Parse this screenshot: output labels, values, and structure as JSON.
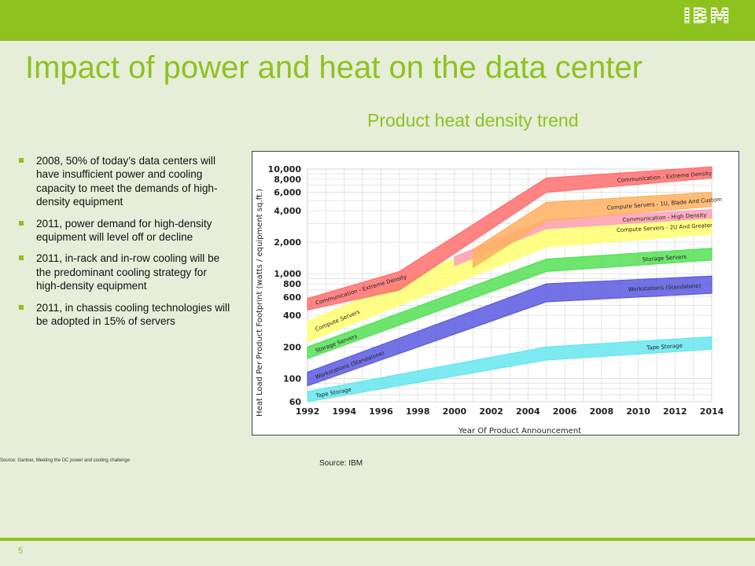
{
  "header": {
    "logo_text": "IBM"
  },
  "slide": {
    "title": "Impact of power and heat on the data center",
    "page_number": "5",
    "bullets": [
      "2008, 50% of today’s data centers will have insufficient power and cooling capacity to meet the demands of high-density equipment",
      "2011, power demand for high-density equipment will level off or decline",
      "2011, in-rack and in-row cooling will be the predominant cooling strategy for high-density equipment",
      "2011, in chassis cooling technologies will be adopted in 15% of servers"
    ],
    "source_left": "Source:  Gartner, Meeting the DC power and cooling challenge",
    "source_right": "Source: IBM"
  },
  "chart_data": {
    "type": "area",
    "title": "Product heat density trend",
    "xlabel": "Year Of Product Announcement",
    "ylabel": "Heat Load Per Product Footprint (watts / equipment sq.ft.)",
    "y_scale": "log",
    "xlim": [
      1992,
      2014
    ],
    "ylim": [
      60,
      10000
    ],
    "x_ticks": [
      1992,
      1994,
      1996,
      1998,
      2000,
      2002,
      2004,
      2006,
      2008,
      2010,
      2012,
      2014
    ],
    "y_ticks": [
      {
        "value": 10000,
        "label": "10,000"
      },
      {
        "value": 8000,
        "label": "8,000"
      },
      {
        "value": 6000,
        "label": "6,000"
      },
      {
        "value": 4000,
        "label": "4,000"
      },
      {
        "value": 2000,
        "label": "2,000"
      },
      {
        "value": 1000,
        "label": "1,000"
      },
      {
        "value": 800,
        "label": "800"
      },
      {
        "value": 600,
        "label": "600"
      },
      {
        "value": 400,
        "label": "400"
      },
      {
        "value": 200,
        "label": "200"
      },
      {
        "value": 100,
        "label": "100"
      },
      {
        "value": 60,
        "label": "60"
      }
    ],
    "grid": true,
    "series": [
      {
        "name": "Tape Storage",
        "label_early": "Tape Storage",
        "color": "#66e6ef",
        "x": [
          1992,
          2005,
          2014
        ],
        "upper": [
          75,
          200,
          250
        ],
        "lower": [
          60,
          150,
          190
        ]
      },
      {
        "name": "Workstations (Standalone)",
        "label_early": "Workstations (Standalone)",
        "color": "#5a5ae0",
        "x": [
          1992,
          2005,
          2014
        ],
        "upper": [
          115,
          800,
          950
        ],
        "lower": [
          85,
          540,
          650
        ]
      },
      {
        "name": "Storage Servers",
        "label_early": "Storage Servers",
        "color": "#55e055",
        "x": [
          1992,
          2005,
          2014
        ],
        "upper": [
          200,
          1380,
          1750
        ],
        "lower": [
          155,
          1050,
          1350
        ]
      },
      {
        "name": "Compute Servers - 2U And Greater",
        "label_early": "Compute Servers",
        "color": "#ffff70",
        "x": [
          1992,
          2005,
          2014
        ],
        "upper": [
          350,
          3300,
          3600
        ],
        "lower": [
          225,
          1800,
          2400
        ]
      },
      {
        "name": "Communication - High Density",
        "color": "#ff9ec0",
        "x": [
          2000,
          2005,
          2014
        ],
        "upper": [
          1450,
          3300,
          4100
        ],
        "lower": [
          1200,
          2700,
          3400
        ]
      },
      {
        "name": "Compute Servers - 1U, Blade And Custom",
        "color": "#ffb060",
        "x": [
          2001,
          2005,
          2014
        ],
        "upper": [
          1700,
          4800,
          6000
        ],
        "lower": [
          1150,
          3200,
          4400
        ]
      },
      {
        "name": "Communication - Extreme Density",
        "label_early": "Communication - Extreme Density",
        "color": "#ff7070",
        "x": [
          1992,
          1997,
          2005,
          2014
        ],
        "upper": [
          580,
          1050,
          8200,
          10500
        ],
        "lower": [
          450,
          700,
          6000,
          8200
        ]
      }
    ]
  }
}
